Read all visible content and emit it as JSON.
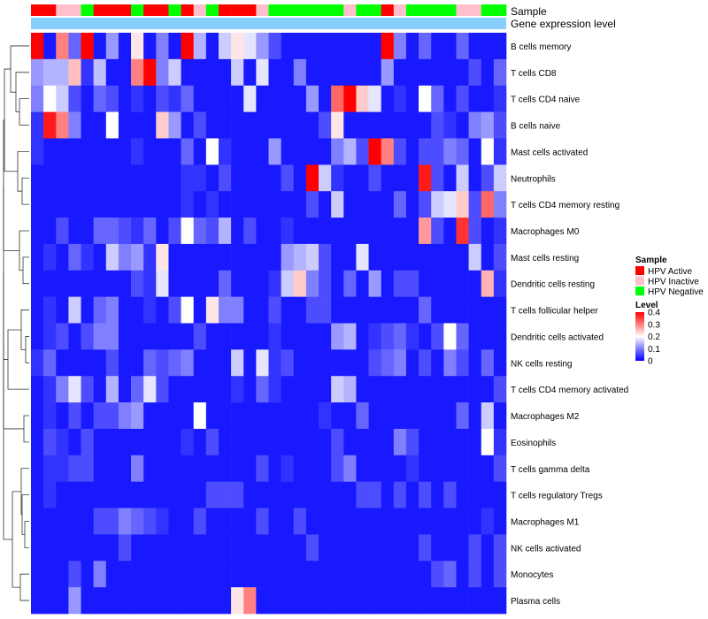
{
  "chart_data": {
    "type": "heatmap",
    "annotation_tracks": [
      "Sample",
      "Gene expression level"
    ],
    "rows": [
      "B cells memory",
      "T cells CD8",
      "T cells CD4 naive",
      "B cells naive",
      "Mast cells activated",
      "Neutrophils",
      "T cells CD4 memory resting",
      "Macrophages M0",
      "Mast cells resting",
      "Dendritic cells resting",
      "T cells follicular helper",
      "Dendritic cells activated",
      "NK cells resting",
      "T cells CD4 memory activated",
      "Macrophages M2",
      "Eosinophils",
      "T cells gamma delta",
      "T cells regulatory  Tregs",
      "Macrophages M1",
      "NK cells activated",
      "Monocytes",
      "Plasma cells"
    ],
    "sample_groups": [
      "A",
      "A",
      "I",
      "I",
      "N",
      "A",
      "A",
      "A",
      "N",
      "A",
      "A",
      "N",
      "A",
      "I",
      "N",
      "A",
      "A",
      "A",
      "I",
      "N",
      "N",
      "N",
      "N",
      "N",
      "N",
      "I",
      "N",
      "N",
      "A",
      "I",
      "N",
      "N",
      "N",
      "N",
      "I",
      "I",
      "N",
      "N"
    ],
    "values": [
      [
        0.4,
        0.02,
        0.3,
        0.08,
        0.4,
        0.02,
        0.12,
        0.02,
        0.22,
        0.02,
        0.1,
        0.02,
        0.4,
        0.14,
        0.02,
        0.16,
        0.22,
        0.18,
        0.12,
        0.06,
        0.02,
        0.02,
        0.02,
        0.02,
        0.02,
        0.02,
        0.02,
        0.02,
        0.4,
        0.1,
        0.02,
        0.08,
        0.02,
        0.02,
        0.08,
        0.02,
        0.02,
        0.02
      ],
      [
        0.12,
        0.14,
        0.14,
        0.25,
        0.04,
        0.15,
        0.02,
        0.02,
        0.3,
        0.4,
        0.1,
        0.16,
        0.02,
        0.02,
        0.02,
        0.02,
        0.16,
        0.02,
        0.18,
        0.02,
        0.02,
        0.1,
        0.02,
        0.02,
        0.02,
        0.02,
        0.02,
        0.02,
        0.12,
        0.02,
        0.02,
        0.02,
        0.02,
        0.02,
        0.02,
        0.06,
        0.02,
        0.08
      ],
      [
        0.1,
        0.2,
        0.16,
        0.06,
        0.02,
        0.08,
        0.06,
        0.02,
        0.04,
        0.02,
        0.06,
        0.04,
        0.08,
        0.02,
        0.02,
        0.02,
        0.02,
        0.18,
        0.02,
        0.02,
        0.02,
        0.02,
        0.12,
        0.02,
        0.32,
        0.4,
        0.24,
        0.18,
        0.02,
        0.04,
        0.02,
        0.2,
        0.08,
        0.02,
        0.06,
        0.02,
        0.02,
        0.04
      ],
      [
        0.04,
        0.38,
        0.3,
        0.1,
        0.02,
        0.02,
        0.2,
        0.02,
        0.02,
        0.02,
        0.24,
        0.12,
        0.02,
        0.06,
        0.02,
        0.02,
        0.02,
        0.02,
        0.02,
        0.02,
        0.02,
        0.02,
        0.02,
        0.06,
        0.22,
        0.02,
        0.02,
        0.02,
        0.02,
        0.02,
        0.02,
        0.02,
        0.06,
        0.04,
        0.02,
        0.1,
        0.12,
        0.06
      ],
      [
        0.04,
        0.02,
        0.02,
        0.02,
        0.02,
        0.02,
        0.02,
        0.02,
        0.04,
        0.02,
        0.02,
        0.02,
        0.08,
        0.02,
        0.2,
        0.04,
        0.02,
        0.02,
        0.02,
        0.12,
        0.02,
        0.02,
        0.02,
        0.02,
        0.1,
        0.14,
        0.06,
        0.4,
        0.3,
        0.06,
        0.02,
        0.06,
        0.06,
        0.1,
        0.08,
        0.02,
        0.2,
        0.04
      ],
      [
        0.02,
        0.02,
        0.02,
        0.02,
        0.02,
        0.02,
        0.02,
        0.02,
        0.02,
        0.02,
        0.02,
        0.02,
        0.04,
        0.04,
        0.02,
        0.06,
        0.02,
        0.02,
        0.02,
        0.02,
        0.06,
        0.02,
        0.4,
        0.16,
        0.04,
        0.02,
        0.02,
        0.06,
        0.02,
        0.02,
        0.02,
        0.38,
        0.06,
        0.02,
        0.16,
        0.02,
        0.06,
        0.16
      ],
      [
        0.02,
        0.02,
        0.02,
        0.02,
        0.02,
        0.02,
        0.02,
        0.02,
        0.02,
        0.02,
        0.02,
        0.02,
        0.04,
        0.02,
        0.04,
        0.02,
        0.02,
        0.02,
        0.02,
        0.02,
        0.02,
        0.02,
        0.06,
        0.02,
        0.16,
        0.02,
        0.02,
        0.02,
        0.02,
        0.08,
        0.02,
        0.06,
        0.16,
        0.18,
        0.24,
        0.06,
        0.32,
        0.1
      ],
      [
        0.02,
        0.02,
        0.06,
        0.02,
        0.02,
        0.08,
        0.08,
        0.06,
        0.04,
        0.08,
        0.02,
        0.06,
        0.2,
        0.08,
        0.06,
        0.14,
        0.02,
        0.06,
        0.02,
        0.02,
        0.04,
        0.02,
        0.02,
        0.02,
        0.02,
        0.02,
        0.02,
        0.02,
        0.02,
        0.02,
        0.02,
        0.28,
        0.06,
        0.02,
        0.36,
        0.06,
        0.02,
        0.04
      ],
      [
        0.02,
        0.04,
        0.02,
        0.08,
        0.04,
        0.02,
        0.16,
        0.1,
        0.12,
        0.04,
        0.22,
        0.02,
        0.02,
        0.02,
        0.02,
        0.02,
        0.02,
        0.02,
        0.02,
        0.02,
        0.12,
        0.14,
        0.16,
        0.06,
        0.02,
        0.02,
        0.18,
        0.02,
        0.02,
        0.02,
        0.02,
        0.02,
        0.02,
        0.02,
        0.02,
        0.16,
        0.02,
        0.06
      ],
      [
        0.02,
        0.02,
        0.02,
        0.02,
        0.02,
        0.02,
        0.02,
        0.02,
        0.06,
        0.04,
        0.18,
        0.02,
        0.02,
        0.02,
        0.02,
        0.08,
        0.02,
        0.02,
        0.02,
        0.04,
        0.16,
        0.24,
        0.1,
        0.06,
        0.02,
        0.08,
        0.02,
        0.12,
        0.02,
        0.06,
        0.06,
        0.02,
        0.02,
        0.02,
        0.02,
        0.02,
        0.26,
        0.04
      ],
      [
        0.02,
        0.04,
        0.02,
        0.16,
        0.02,
        0.08,
        0.1,
        0.02,
        0.02,
        0.04,
        0.02,
        0.06,
        0.2,
        0.02,
        0.22,
        0.1,
        0.1,
        0.02,
        0.02,
        0.06,
        0.02,
        0.02,
        0.06,
        0.06,
        0.02,
        0.02,
        0.02,
        0.02,
        0.02,
        0.02,
        0.02,
        0.08,
        0.02,
        0.02,
        0.02,
        0.02,
        0.02,
        0.02
      ],
      [
        0.02,
        0.04,
        0.06,
        0.02,
        0.06,
        0.1,
        0.1,
        0.02,
        0.02,
        0.02,
        0.02,
        0.02,
        0.02,
        0.06,
        0.02,
        0.02,
        0.02,
        0.02,
        0.02,
        0.04,
        0.02,
        0.02,
        0.02,
        0.02,
        0.12,
        0.14,
        0.02,
        0.04,
        0.06,
        0.08,
        0.04,
        0.02,
        0.06,
        0.2,
        0.08,
        0.02,
        0.02,
        0.02
      ],
      [
        0.04,
        0.08,
        0.02,
        0.02,
        0.02,
        0.02,
        0.06,
        0.02,
        0.02,
        0.08,
        0.06,
        0.08,
        0.1,
        0.02,
        0.02,
        0.02,
        0.16,
        0.02,
        0.18,
        0.04,
        0.06,
        0.02,
        0.02,
        0.02,
        0.02,
        0.02,
        0.02,
        0.06,
        0.08,
        0.1,
        0.02,
        0.06,
        0.02,
        0.1,
        0.06,
        0.02,
        0.08,
        0.02
      ],
      [
        0.02,
        0.04,
        0.1,
        0.18,
        0.06,
        0.02,
        0.14,
        0.02,
        0.08,
        0.18,
        0.06,
        0.02,
        0.02,
        0.02,
        0.02,
        0.02,
        0.04,
        0.02,
        0.08,
        0.04,
        0.02,
        0.02,
        0.02,
        0.02,
        0.16,
        0.14,
        0.02,
        0.02,
        0.02,
        0.02,
        0.02,
        0.02,
        0.02,
        0.02,
        0.02,
        0.02,
        0.02,
        0.06
      ],
      [
        0.02,
        0.04,
        0.02,
        0.06,
        0.02,
        0.06,
        0.06,
        0.1,
        0.12,
        0.02,
        0.02,
        0.02,
        0.02,
        0.2,
        0.02,
        0.02,
        0.02,
        0.02,
        0.02,
        0.02,
        0.02,
        0.02,
        0.02,
        0.04,
        0.02,
        0.02,
        0.08,
        0.02,
        0.02,
        0.02,
        0.02,
        0.02,
        0.02,
        0.02,
        0.08,
        0.02,
        0.16,
        0.02
      ],
      [
        0.02,
        0.06,
        0.04,
        0.02,
        0.06,
        0.02,
        0.02,
        0.02,
        0.02,
        0.02,
        0.02,
        0.02,
        0.04,
        0.02,
        0.06,
        0.02,
        0.02,
        0.02,
        0.02,
        0.02,
        0.02,
        0.02,
        0.02,
        0.02,
        0.06,
        0.02,
        0.02,
        0.02,
        0.02,
        0.1,
        0.06,
        0.02,
        0.02,
        0.02,
        0.02,
        0.02,
        0.2,
        0.04
      ],
      [
        0.02,
        0.04,
        0.04,
        0.06,
        0.06,
        0.02,
        0.02,
        0.02,
        0.1,
        0.02,
        0.02,
        0.02,
        0.02,
        0.02,
        0.02,
        0.02,
        0.02,
        0.02,
        0.06,
        0.02,
        0.04,
        0.02,
        0.02,
        0.02,
        0.06,
        0.1,
        0.02,
        0.02,
        0.02,
        0.02,
        0.04,
        0.02,
        0.02,
        0.02,
        0.02,
        0.02,
        0.02,
        0.06
      ],
      [
        0.02,
        0.04,
        0.02,
        0.02,
        0.02,
        0.02,
        0.02,
        0.02,
        0.02,
        0.02,
        0.02,
        0.02,
        0.02,
        0.02,
        0.06,
        0.06,
        0.06,
        0.02,
        0.02,
        0.02,
        0.02,
        0.02,
        0.02,
        0.02,
        0.02,
        0.02,
        0.06,
        0.06,
        0.02,
        0.06,
        0.02,
        0.06,
        0.02,
        0.06,
        0.02,
        0.02,
        0.02,
        0.02
      ],
      [
        0.02,
        0.02,
        0.02,
        0.02,
        0.02,
        0.06,
        0.06,
        0.1,
        0.08,
        0.06,
        0.04,
        0.02,
        0.02,
        0.06,
        0.02,
        0.02,
        0.02,
        0.02,
        0.06,
        0.02,
        0.02,
        0.06,
        0.02,
        0.02,
        0.02,
        0.02,
        0.02,
        0.02,
        0.02,
        0.02,
        0.02,
        0.02,
        0.02,
        0.02,
        0.02,
        0.02,
        0.04,
        0.02
      ],
      [
        0.02,
        0.02,
        0.02,
        0.02,
        0.02,
        0.02,
        0.02,
        0.06,
        0.02,
        0.02,
        0.02,
        0.02,
        0.02,
        0.02,
        0.02,
        0.02,
        0.02,
        0.02,
        0.02,
        0.02,
        0.02,
        0.02,
        0.06,
        0.02,
        0.02,
        0.02,
        0.02,
        0.02,
        0.02,
        0.02,
        0.02,
        0.06,
        0.02,
        0.02,
        0.02,
        0.06,
        0.02,
        0.06
      ],
      [
        0.02,
        0.02,
        0.02,
        0.06,
        0.02,
        0.1,
        0.02,
        0.02,
        0.02,
        0.02,
        0.02,
        0.02,
        0.02,
        0.02,
        0.02,
        0.02,
        0.02,
        0.02,
        0.02,
        0.02,
        0.02,
        0.02,
        0.02,
        0.02,
        0.02,
        0.02,
        0.02,
        0.02,
        0.02,
        0.02,
        0.02,
        0.02,
        0.06,
        0.08,
        0.02,
        0.06,
        0.02,
        0.06
      ],
      [
        0.02,
        0.02,
        0.02,
        0.12,
        0.02,
        0.02,
        0.02,
        0.02,
        0.02,
        0.02,
        0.02,
        0.02,
        0.02,
        0.02,
        0.02,
        0.02,
        0.22,
        0.3,
        0.02,
        0.02,
        0.02,
        0.02,
        0.02,
        0.02,
        0.02,
        0.02,
        0.02,
        0.02,
        0.02,
        0.02,
        0.02,
        0.02,
        0.02,
        0.02,
        0.02,
        0.02,
        0.02,
        0.02
      ]
    ],
    "legend": {
      "sample_title": "Sample",
      "sample_entries": [
        {
          "key": "A",
          "label": "HPV Active",
          "color": "#ff0000"
        },
        {
          "key": "I",
          "label": "HPV Inactive",
          "color": "#ffc0cb"
        },
        {
          "key": "N",
          "label": "HPV Negative",
          "color": "#00ff00"
        }
      ],
      "level_title": "Level",
      "level_ticks": [
        "0.4",
        "0.3",
        "0.2",
        "0.1",
        "0"
      ],
      "level_values": [
        0.4,
        0.3,
        0.2,
        0.1,
        0
      ],
      "level_range": [
        0,
        0.4
      ]
    },
    "colors": {
      "low": "#0000ff",
      "mid": "#ffffff",
      "high": "#ff0000",
      "expression_track": "#87cefa"
    }
  }
}
